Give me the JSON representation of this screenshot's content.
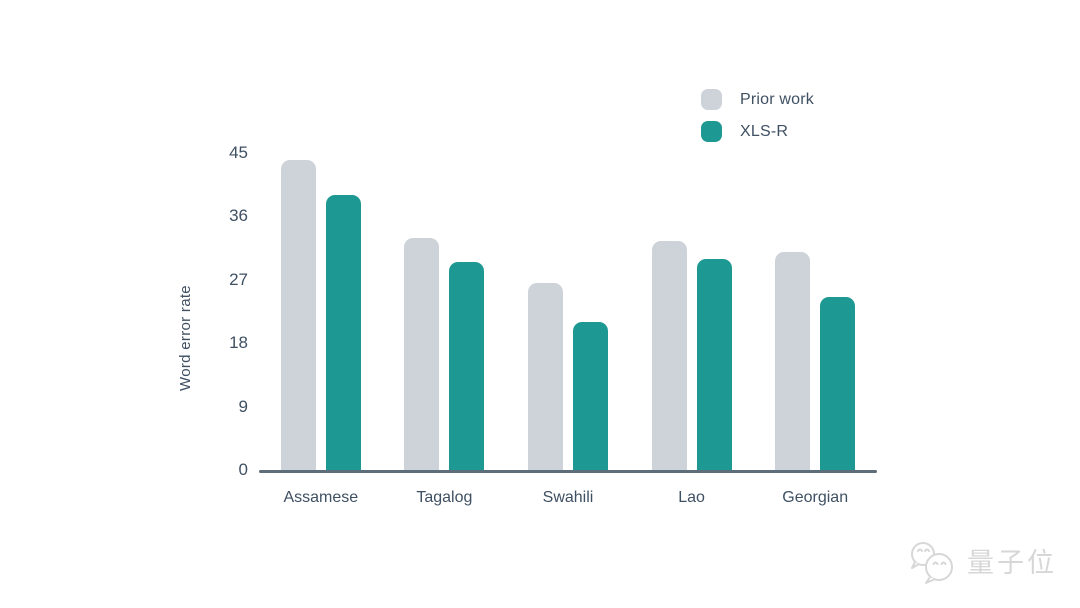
{
  "chart_data": {
    "type": "bar",
    "title": "",
    "xlabel": "",
    "ylabel": "Word error rate",
    "categories": [
      "Assamese",
      "Tagalog",
      "Swahili",
      "Lao",
      "Georgian"
    ],
    "series": [
      {
        "name": "Prior work",
        "color": "#cdd3d9",
        "values": [
          44,
          33,
          26.5,
          32.5,
          31
        ]
      },
      {
        "name": "XLS-R",
        "color": "#1e9892",
        "values": [
          39,
          29.5,
          21,
          30,
          24.5
        ]
      }
    ],
    "ylim": [
      0,
      45
    ],
    "yticks": [
      0,
      9,
      18,
      27,
      36,
      45
    ],
    "legend_position": "top-right",
    "grid": false
  },
  "colors": {
    "background": "#ffffff",
    "text": "#3f5063",
    "axis_line": "#5d6d79",
    "prior_work_bar": "#cdd3d9",
    "xlsr_bar": "#1e9892",
    "watermark": "#d7d7d7"
  },
  "watermark": {
    "icon": "qbitai-wechat-bubbles-logo",
    "text": "量子位"
  }
}
